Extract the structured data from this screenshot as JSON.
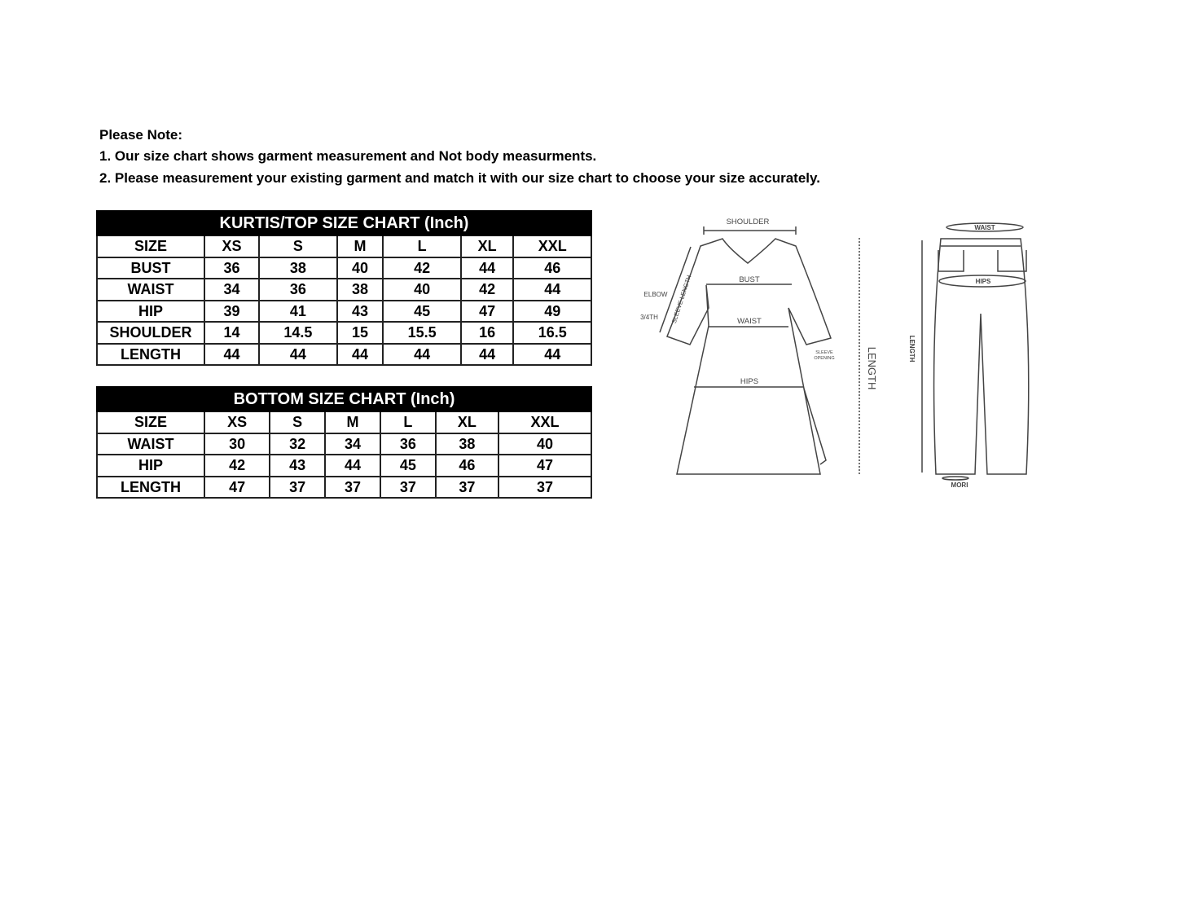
{
  "notes": {
    "heading": "Please Note:",
    "line1": "1. Our size chart shows garment measurement and Not body measurments.",
    "line2": "2. Please measurement your existing garment and match it with our size chart to choose your size accurately."
  },
  "kurtis_chart": {
    "title": "KURTIS/TOP SIZE CHART (Inch)",
    "header": [
      "SIZE",
      "XS",
      "S",
      "M",
      "L",
      "XL",
      "XXL"
    ],
    "rows": [
      [
        "BUST",
        "36",
        "38",
        "40",
        "42",
        "44",
        "46"
      ],
      [
        "WAIST",
        "34",
        "36",
        "38",
        "40",
        "42",
        "44"
      ],
      [
        "HIP",
        "39",
        "41",
        "43",
        "45",
        "47",
        "49"
      ],
      [
        "SHOULDER",
        "14",
        "14.5",
        "15",
        "15.5",
        "16",
        "16.5"
      ],
      [
        "LENGTH",
        "44",
        "44",
        "44",
        "44",
        "44",
        "44"
      ]
    ]
  },
  "bottom_chart": {
    "title": "BOTTOM SIZE CHART (Inch)",
    "header": [
      "SIZE",
      "XS",
      "S",
      "M",
      "L",
      "XL",
      "XXL"
    ],
    "rows": [
      [
        "WAIST",
        "30",
        "32",
        "34",
        "36",
        "38",
        "40"
      ],
      [
        "HIP",
        "42",
        "43",
        "44",
        "45",
        "46",
        "47"
      ],
      [
        "LENGTH",
        "47",
        "37",
        "37",
        "37",
        "37",
        "37"
      ]
    ]
  },
  "diagram": {
    "kurta": {
      "shoulder": "SHOULDER",
      "bust": "BUST",
      "waist": "WAIST",
      "hips": "HIPS",
      "elbow": "ELBOW",
      "three_fourth": "3/4TH",
      "sleeve_length": "SLEEVE LENGTH",
      "sleeve_opening_1": "SLEEVE",
      "sleeve_opening_2": "OPENING",
      "length": "LENGTH"
    },
    "pants": {
      "waist": "WAIST",
      "hips": "HIPS",
      "length": "LENGTH",
      "mori": "MORI"
    }
  }
}
